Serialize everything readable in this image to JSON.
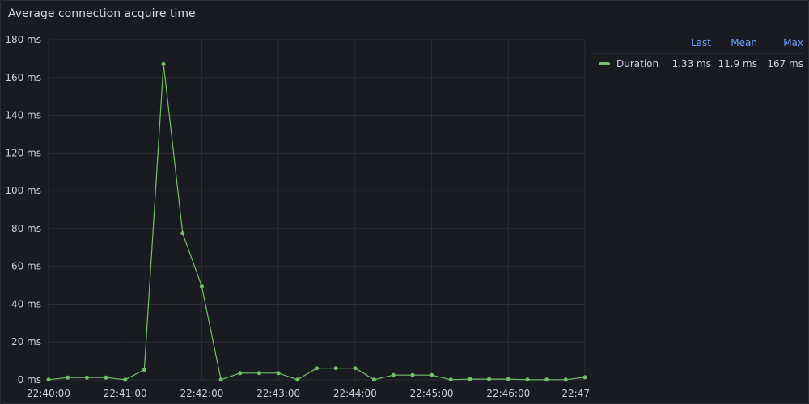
{
  "panel": {
    "title": "Average connection acquire time"
  },
  "legend": {
    "columns": [
      "Last",
      "Mean",
      "Max"
    ],
    "rows": [
      {
        "name": "Duration",
        "last": "1.33 ms",
        "mean": "11.9 ms",
        "max": "167 ms"
      }
    ]
  },
  "colors": {
    "series": "#73bf69",
    "grid": "#2a2c33",
    "axis_text": "#ccccdc"
  },
  "chart_data": {
    "type": "line",
    "x_ticks": [
      "22:40:00",
      "22:41:00",
      "22:42:00",
      "22:43:00",
      "22:44:00",
      "22:45:00",
      "22:46:00",
      "22:47"
    ],
    "y_ticks": [
      "0 ms",
      "20 ms",
      "40 ms",
      "60 ms",
      "80 ms",
      "100 ms",
      "120 ms",
      "140 ms",
      "160 ms",
      "180 ms"
    ],
    "ylim": [
      0,
      180
    ],
    "xlim": [
      "22:40:00",
      "22:47:00"
    ],
    "grid": true,
    "legend_position": "right",
    "series": [
      {
        "name": "Duration",
        "x": [
          "22:40:00",
          "22:40:15",
          "22:40:30",
          "22:40:45",
          "22:41:00",
          "22:41:15",
          "22:41:30",
          "22:41:45",
          "22:42:00",
          "22:42:15",
          "22:42:30",
          "22:42:45",
          "22:43:00",
          "22:43:15",
          "22:43:30",
          "22:43:45",
          "22:44:00",
          "22:44:15",
          "22:44:30",
          "22:44:45",
          "22:45:00",
          "22:45:15",
          "22:45:30",
          "22:45:45",
          "22:46:00",
          "22:46:15",
          "22:46:30",
          "22:46:45",
          "22:47:00"
        ],
        "values": [
          0.1,
          1.2,
          1.2,
          1.2,
          0.1,
          5.3,
          167,
          77.5,
          49.4,
          0.1,
          3.5,
          3.5,
          3.5,
          0.1,
          6.1,
          6.1,
          6.1,
          0.1,
          2.5,
          2.5,
          2.5,
          0.1,
          0.4,
          0.4,
          0.4,
          0.1,
          0.1,
          0.1,
          1.33
        ]
      }
    ]
  }
}
